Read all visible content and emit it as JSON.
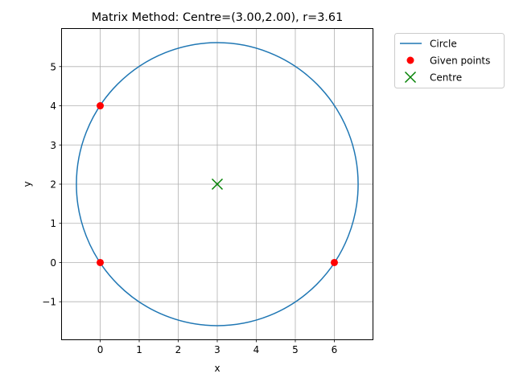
{
  "chart_data": {
    "type": "scatter",
    "title": "Matrix Method: Centre=(3.00,2.00), r=3.61",
    "xlabel": "x",
    "ylabel": "y",
    "xlim": [
      -0.98,
      6.98
    ],
    "ylim": [
      -1.96,
      5.96
    ],
    "xticks": [
      0,
      1,
      2,
      3,
      4,
      5,
      6
    ],
    "yticks": [
      -1,
      0,
      1,
      2,
      3,
      4,
      5
    ],
    "grid": true,
    "legend_position": "outside-top-right",
    "circle": {
      "name": "Circle",
      "center": [
        3.0,
        2.0
      ],
      "radius": 3.61,
      "color": "#1f77b4"
    },
    "series": [
      {
        "name": "Given points",
        "marker": "circle",
        "color": "#ff0000",
        "x": [
          0,
          0,
          6
        ],
        "y": [
          4,
          0,
          0
        ]
      },
      {
        "name": "Centre",
        "marker": "x",
        "color": "#008000",
        "x": [
          3
        ],
        "y": [
          2
        ]
      }
    ]
  }
}
